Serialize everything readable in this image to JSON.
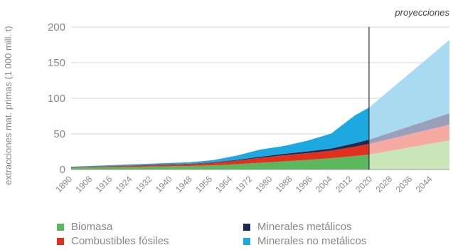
{
  "chart_data": {
    "type": "area",
    "stacked": true,
    "ylabel": "extracciones mat. primas (1 000 mill. t)",
    "ylim": [
      0,
      200
    ],
    "yticks": [
      0,
      50,
      100,
      150,
      200
    ],
    "xlim": [
      1890,
      2050
    ],
    "xticks": [
      "1890",
      "1908",
      "1916",
      "1924",
      "1932",
      "1940",
      "1948",
      "1956",
      "1964",
      "1972",
      "1980",
      "1988",
      "1996",
      "2004",
      "2012",
      "2020",
      "2028",
      "2036",
      "2044"
    ],
    "projection_start": 2016,
    "projection_label": "proyecciones",
    "grid": "horizontal",
    "legend_position": "bottom",
    "x": [
      1890,
      1900,
      1910,
      1920,
      1930,
      1940,
      1950,
      1960,
      1970,
      1980,
      1990,
      2000,
      2010,
      2016,
      2050
    ],
    "series": [
      {
        "name": "Biomasa",
        "color": "#5cb85c",
        "projection_color": "#c8e6b8",
        "values": [
          2.5,
          3,
          3.5,
          4,
          4.5,
          5,
          6,
          7.5,
          9.5,
          11.5,
          13.5,
          16,
          19,
          21,
          41
        ]
      },
      {
        "name": "Combustibles fósiles",
        "color": "#e03020",
        "projection_color": "#f5aaa2",
        "values": [
          0.5,
          1,
          1.5,
          2,
          2.3,
          2.7,
          3.5,
          5,
          7,
          8.5,
          9.5,
          10.5,
          13,
          15,
          22
        ]
      },
      {
        "name": "Minerales metálicos",
        "color": "#1e2a4f",
        "projection_color": "#9aa0bc",
        "values": [
          0.2,
          0.2,
          0.3,
          0.3,
          0.4,
          0.4,
          0.6,
          1,
          1.5,
          2,
          2.5,
          3,
          5,
          6,
          16
        ]
      },
      {
        "name": "Minerales no metálicos",
        "color": "#1ea8e0",
        "projection_color": "#a8daf2",
        "values": [
          0.8,
          1,
          1.2,
          1.5,
          1.8,
          2,
          3,
          6,
          10,
          11,
          15,
          21,
          39,
          45,
          103
        ]
      }
    ]
  },
  "legend": {
    "items": [
      {
        "label": "Biomasa",
        "color": "#5cb85c"
      },
      {
        "label": "Minerales metálicos",
        "color": "#1e2a4f"
      },
      {
        "label": "Combustibles fósiles",
        "color": "#e03020"
      },
      {
        "label": "Minerales no metálicos",
        "color": "#1ea8e0"
      }
    ]
  }
}
